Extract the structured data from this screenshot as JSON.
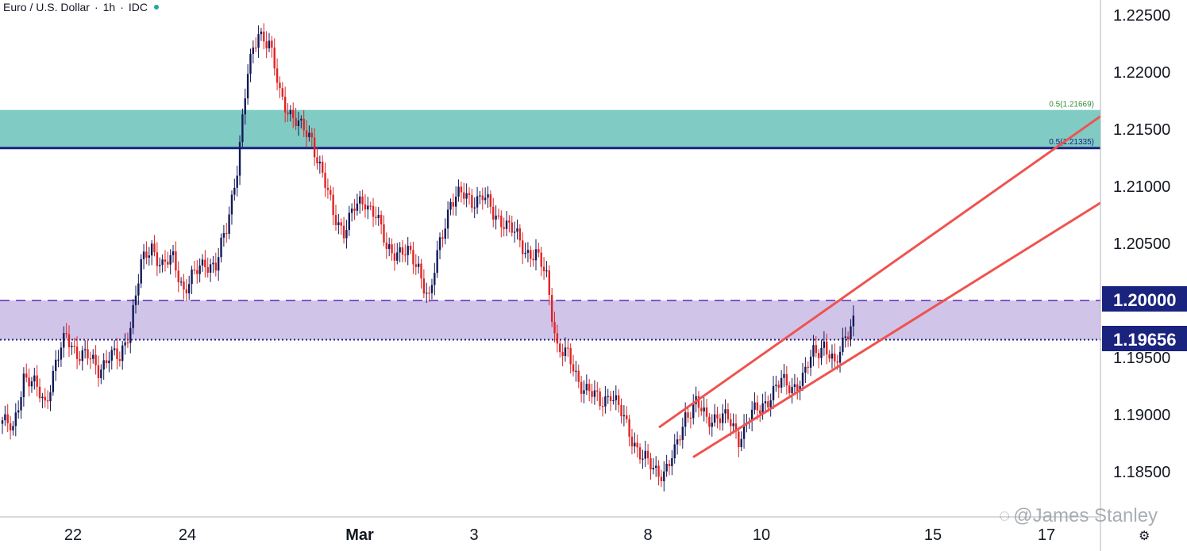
{
  "header": {
    "symbol": "Euro / U.S. Dollar",
    "interval": "1h",
    "source": "IDC",
    "status_color": "#26a69a"
  },
  "watermark": {
    "text": "@James Stanley"
  },
  "settings": {
    "icon": "gear-icon"
  },
  "colors": {
    "up": "#131a5a",
    "down": "#e02424",
    "resistance_zone": "#80cbc4",
    "support_zone": "#d1c4e9",
    "trend_channel": "#ef5350",
    "level_line": "#1a237e",
    "dashed_level": "#7e57c2"
  },
  "chart_data": {
    "type": "candlestick",
    "y_ticks": [
      "1.22500",
      "1.22000",
      "1.21500",
      "1.21000",
      "1.20500",
      "1.20000",
      "1.19500",
      "1.19000",
      "1.18500"
    ],
    "x_ticks": [
      "22",
      "24",
      "Mar",
      "3",
      "8",
      "10",
      "15",
      "17"
    ],
    "ylim": [
      1.1805,
      1.2265
    ],
    "price_labels": [
      "1.20000",
      "1.19656"
    ],
    "zones": [
      {
        "name": "resistance",
        "from": 1.21335,
        "to": 1.21669,
        "labels": [
          "0.5(1.21669)",
          "0.5(1.21335)"
        ]
      },
      {
        "name": "support",
        "from": 1.19656,
        "to": 1.2
      }
    ],
    "channel": {
      "upper": {
        "from": [
          "Mar 8",
          1.1882
        ],
        "to": [
          "Mar 17",
          1.2128
        ]
      },
      "lower": {
        "from": [
          "Mar 8",
          1.1838
        ],
        "to": [
          "Mar 17",
          1.2056
        ]
      }
    },
    "path": [
      [
        0,
        1.1895
      ],
      [
        4,
        1.1885
      ],
      [
        8,
        1.1935
      ],
      [
        12,
        1.1925
      ],
      [
        16,
        1.191
      ],
      [
        20,
        1.1945
      ],
      [
        24,
        1.1968
      ],
      [
        28,
        1.1955
      ],
      [
        32,
        1.195
      ],
      [
        36,
        1.194
      ],
      [
        40,
        1.1952
      ],
      [
        44,
        1.1948
      ],
      [
        48,
        1.198
      ],
      [
        52,
        1.203
      ],
      [
        56,
        1.2048
      ],
      [
        60,
        1.203
      ],
      [
        64,
        1.2036
      ],
      [
        68,
        1.201
      ],
      [
        72,
        1.2022
      ],
      [
        76,
        1.2034
      ],
      [
        80,
        1.203
      ],
      [
        84,
        1.2062
      ],
      [
        88,
        1.2118
      ],
      [
        92,
        1.2198
      ],
      [
        96,
        1.2237
      ],
      [
        100,
        1.2225
      ],
      [
        104,
        1.218
      ],
      [
        108,
        1.2165
      ],
      [
        112,
        1.215
      ],
      [
        116,
        1.2142
      ],
      [
        120,
        1.211
      ],
      [
        124,
        1.2075
      ],
      [
        128,
        1.2062
      ],
      [
        132,
        1.208
      ],
      [
        136,
        1.2088
      ],
      [
        140,
        1.2075
      ],
      [
        144,
        1.2045
      ],
      [
        148,
        1.2044
      ],
      [
        152,
        1.204
      ],
      [
        156,
        1.203
      ],
      [
        160,
        1.2
      ],
      [
        164,
        1.205
      ],
      [
        168,
        1.2088
      ],
      [
        172,
        1.2092
      ],
      [
        176,
        1.2088
      ],
      [
        180,
        1.2092
      ],
      [
        184,
        1.2075
      ],
      [
        188,
        1.207
      ],
      [
        192,
        1.2058
      ],
      [
        196,
        1.2044
      ],
      [
        200,
        1.204
      ],
      [
        204,
        1.202
      ],
      [
        208,
        1.196
      ],
      [
        212,
        1.195
      ],
      [
        216,
        1.193
      ],
      [
        220,
        1.192
      ],
      [
        224,
        1.191
      ],
      [
        228,
        1.192
      ],
      [
        232,
        1.19
      ],
      [
        236,
        1.188
      ],
      [
        240,
        1.1862
      ],
      [
        244,
        1.1852
      ],
      [
        248,
        1.185
      ],
      [
        252,
        1.1865
      ],
      [
        256,
        1.19
      ],
      [
        260,
        1.191
      ],
      [
        264,
        1.1895
      ],
      [
        268,
        1.19
      ],
      [
        272,
        1.1895
      ],
      [
        276,
        1.188
      ],
      [
        280,
        1.1898
      ],
      [
        284,
        1.1905
      ],
      [
        288,
        1.1918
      ],
      [
        292,
        1.1928
      ],
      [
        296,
        1.1925
      ],
      [
        300,
        1.193
      ],
      [
        304,
        1.1955
      ],
      [
        308,
        1.1962
      ],
      [
        312,
        1.194
      ],
      [
        316,
        1.1972
      ],
      [
        319,
        1.1982
      ]
    ]
  }
}
